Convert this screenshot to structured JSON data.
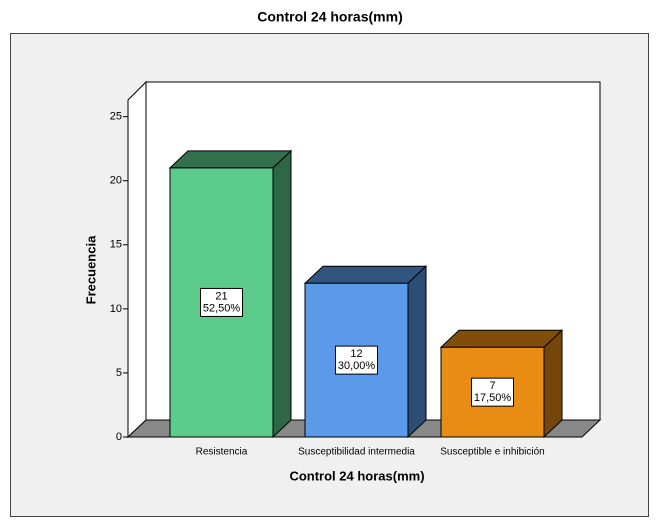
{
  "chart_data": {
    "type": "bar3d",
    "title": "Control 24 horas(mm)",
    "x_label": "Control 24 horas(mm)",
    "y_label": "Frecuencia",
    "categories": [
      "Resistencia",
      "Susceptibilidad intermedia",
      "Susceptible e inhibición"
    ],
    "values": [
      21,
      12,
      7
    ],
    "percent_labels": [
      "52,50%",
      "30,00%",
      "17,50%"
    ],
    "colors": [
      "#5ccb8c",
      "#5b9ae8",
      "#e88c14"
    ],
    "ylim": [
      0,
      26.3
    ],
    "yticks": [
      0,
      5,
      10,
      15,
      20,
      25
    ]
  }
}
